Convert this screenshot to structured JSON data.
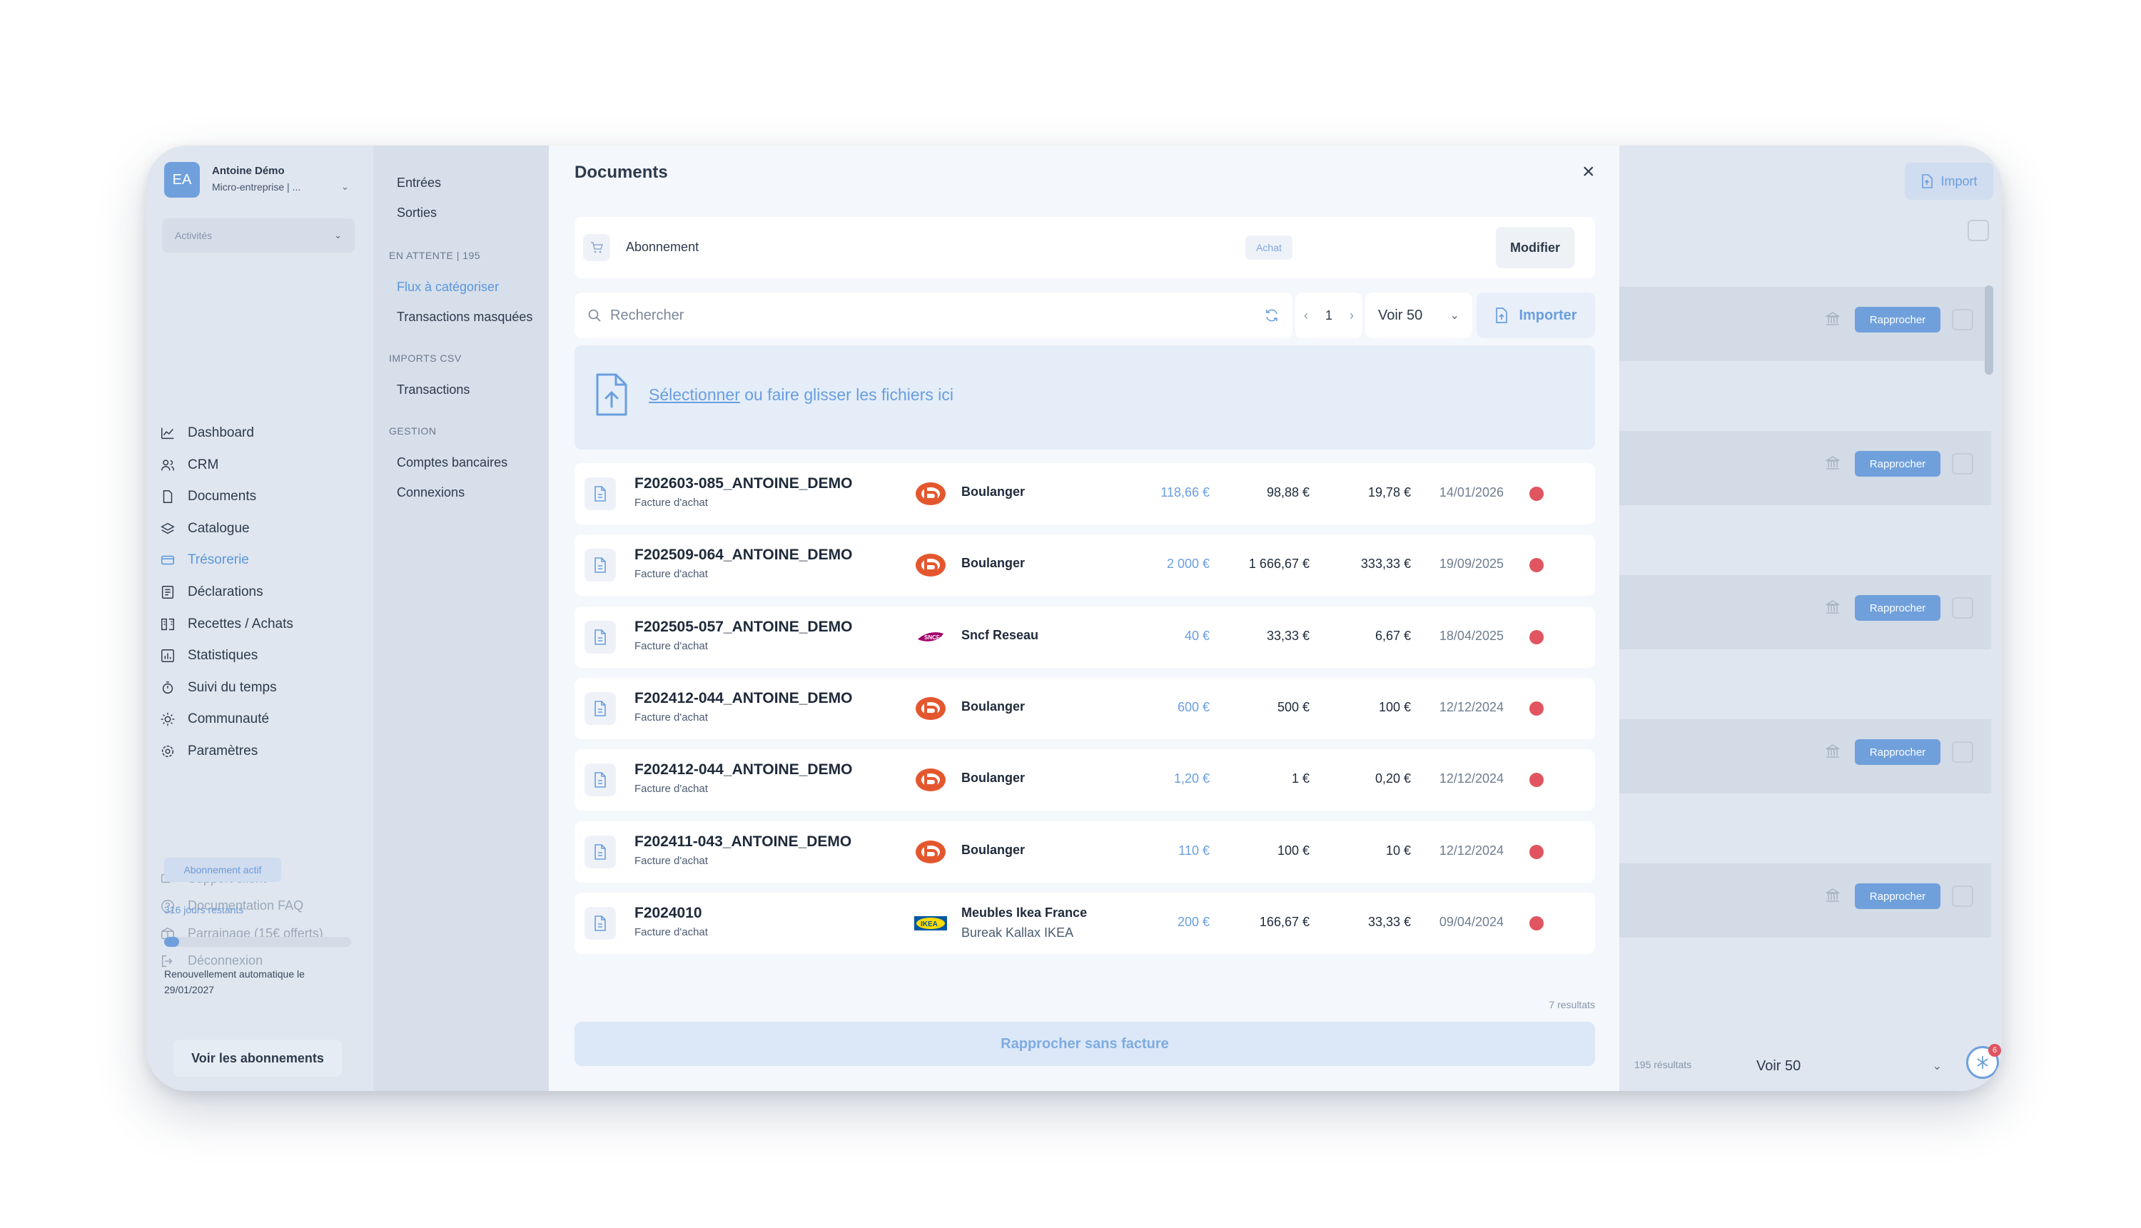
{
  "user": {
    "initials": "EA",
    "name": "Antoine Démo",
    "company": "Micro-entreprise | ..."
  },
  "activities": {
    "label": "Activités"
  },
  "nav": [
    {
      "label": "Dashboard",
      "icon": "chart-line-icon"
    },
    {
      "label": "CRM",
      "icon": "users-icon"
    },
    {
      "label": "Documents",
      "icon": "file-icon"
    },
    {
      "label": "Catalogue",
      "icon": "layers-icon"
    },
    {
      "label": "Trésorerie",
      "icon": "credit-card-icon",
      "active": true
    },
    {
      "label": "Déclarations",
      "icon": "form-icon"
    },
    {
      "label": "Recettes / Achats",
      "icon": "ledger-icon"
    },
    {
      "label": "Statistiques",
      "icon": "stats-icon"
    },
    {
      "label": "Suivi du temps",
      "icon": "stopwatch-icon"
    },
    {
      "label": "Communauté",
      "icon": "sun-icon"
    },
    {
      "label": "Paramètres",
      "icon": "gear-icon"
    }
  ],
  "footer_links": [
    {
      "label": "Support client",
      "icon": "support-icon"
    },
    {
      "label": "Documentation FAQ",
      "icon": "help-icon"
    },
    {
      "label": "Parrainage (15€ offerts)",
      "icon": "gift-icon"
    },
    {
      "label": "Déconnexion",
      "icon": "logout-icon"
    }
  ],
  "subscription": {
    "badge": "Abonnement actif",
    "days_left": "316 jours restants",
    "progress": 0.08,
    "renewal": "Renouvellement automatique le 29/01/2027",
    "button": "Voir les abonnements"
  },
  "subnav": {
    "entries": "Entrées",
    "exits": "Sorties",
    "pending_header": "EN ATTENTE | 195",
    "to_categorize": "Flux à catégoriser",
    "masked": "Transactions masquées",
    "csv_header": "IMPORTS CSV",
    "transactions": "Transactions",
    "gestion_header": "GESTION",
    "accounts": "Comptes bancaires",
    "connections": "Connexions"
  },
  "modal": {
    "title": "Documents",
    "close_icon": "close-icon",
    "subscription_label": "Abonnement",
    "tag": "Achat",
    "modify": "Modifier",
    "search_placeholder": "Rechercher",
    "page": "1",
    "per_page": "Voir 50",
    "import": "Importer",
    "drop_link": "Sélectionner",
    "drop_text": " ou faire glisser les fichiers ici",
    "results": "7 resultats",
    "reconcile_without": "Rapprocher sans facture"
  },
  "documents": [
    {
      "name": "F202603-085_ANTOINE_DEMO",
      "type": "Facture d'achat",
      "supplier": "Boulanger",
      "supplier_sub": "",
      "logo": "boulanger",
      "ttc": "118,66 €",
      "ht": "98,88 €",
      "tva": "19,78 €",
      "date": "14/01/2026"
    },
    {
      "name": "F202509-064_ANTOINE_DEMO",
      "type": "Facture d'achat",
      "supplier": "Boulanger",
      "supplier_sub": "",
      "logo": "boulanger",
      "ttc": "2 000 €",
      "ht": "1 666,67 €",
      "tva": "333,33 €",
      "date": "19/09/2025"
    },
    {
      "name": "F202505-057_ANTOINE_DEMO",
      "type": "Facture d'achat",
      "supplier": "Sncf Reseau",
      "supplier_sub": "",
      "logo": "sncf",
      "ttc": "40 €",
      "ht": "33,33 €",
      "tva": "6,67 €",
      "date": "18/04/2025"
    },
    {
      "name": "F202412-044_ANTOINE_DEMO",
      "type": "Facture d'achat",
      "supplier": "Boulanger",
      "supplier_sub": "",
      "logo": "boulanger",
      "ttc": "600 €",
      "ht": "500 €",
      "tva": "100 €",
      "date": "12/12/2024"
    },
    {
      "name": "F202412-044_ANTOINE_DEMO",
      "type": "Facture d'achat",
      "supplier": "Boulanger",
      "supplier_sub": "",
      "logo": "boulanger",
      "ttc": "1,20 €",
      "ht": "1 €",
      "tva": "0,20 €",
      "date": "12/12/2024"
    },
    {
      "name": "F202411-043_ANTOINE_DEMO",
      "type": "Facture d'achat",
      "supplier": "Boulanger",
      "supplier_sub": "",
      "logo": "boulanger",
      "ttc": "110 €",
      "ht": "100 €",
      "tva": "10 €",
      "date": "12/12/2024"
    },
    {
      "name": "F2024010",
      "type": "Facture d'achat",
      "supplier": "Meubles Ikea France",
      "supplier_sub": "Bureak Kallax IKEA",
      "logo": "ikea",
      "ttc": "200 €",
      "ht": "166,67 €",
      "tva": "33,33 €",
      "date": "09/04/2024"
    }
  ],
  "right_panel": {
    "import": "Import",
    "reconcile": "Rapprocher",
    "results": "195 résultats",
    "per_page": "Voir 50",
    "fab_count": "6"
  },
  "colors": {
    "accent": "#6fa0dc",
    "status_red": "#e0555f",
    "boulanger": "#e4572e"
  }
}
